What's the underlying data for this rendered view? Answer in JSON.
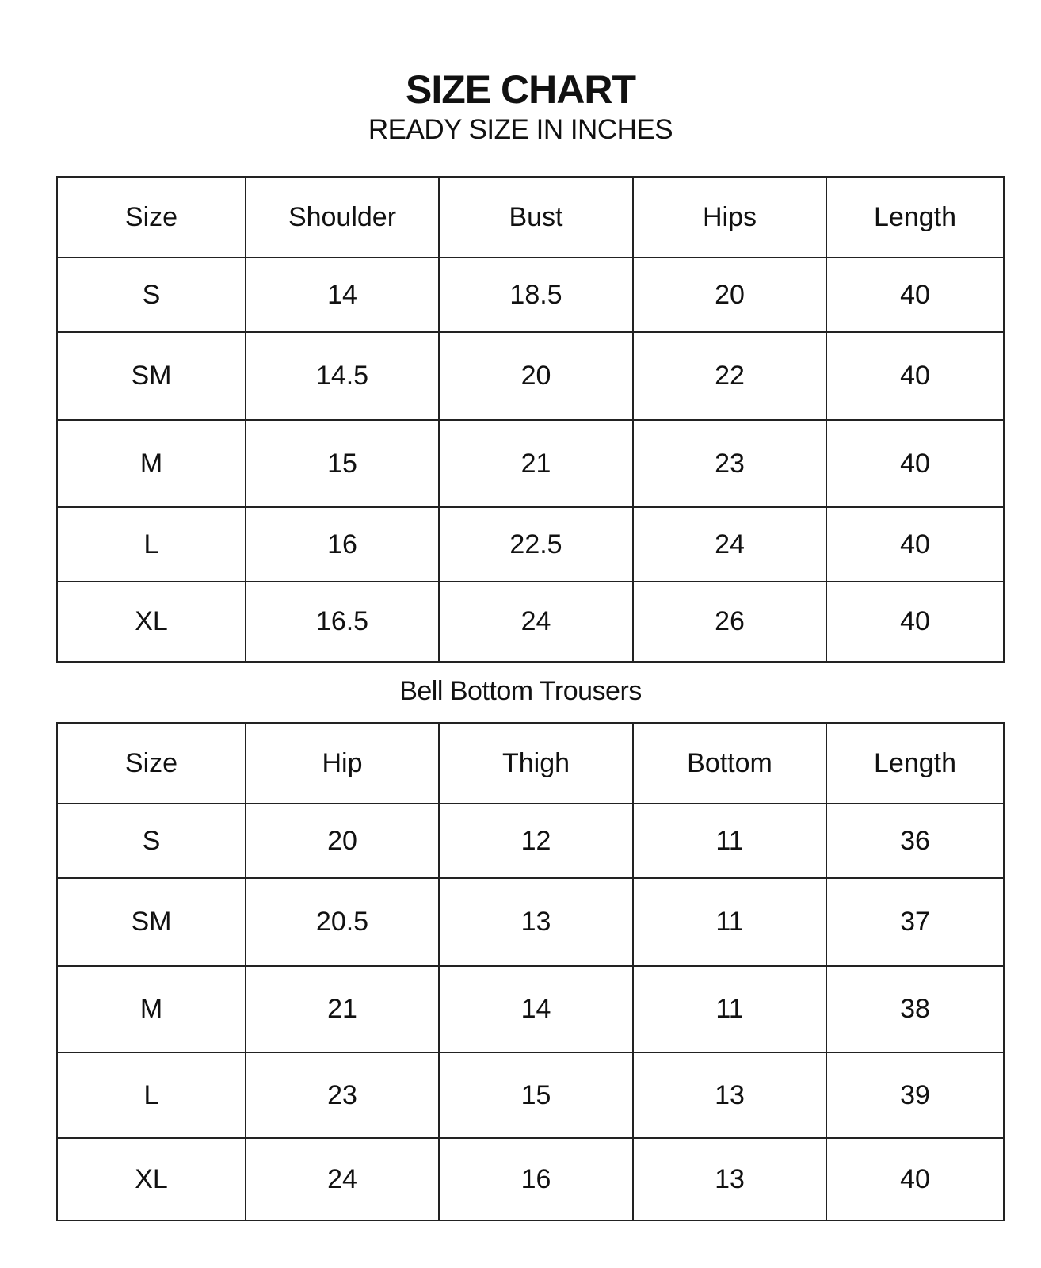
{
  "title": "SIZE CHART",
  "subtitle": "READY SIZE IN INCHES",
  "top_table": {
    "headers": [
      "Size",
      "Shoulder",
      "Bust",
      "Hips",
      "Length"
    ],
    "rows": [
      [
        "S",
        "14",
        "18.5",
        "20",
        "40"
      ],
      [
        "SM",
        "14.5",
        "20",
        "22",
        "40"
      ],
      [
        "M",
        "15",
        "21",
        "23",
        "40"
      ],
      [
        "L",
        "16",
        "22.5",
        "24",
        "40"
      ],
      [
        "XL",
        "16.5",
        "24",
        "26",
        "40"
      ]
    ]
  },
  "trousers_caption": "Bell Bottom Trousers",
  "trousers_table": {
    "headers": [
      "Size",
      "Hip",
      "Thigh",
      "Bottom",
      "Length"
    ],
    "rows": [
      [
        "S",
        "20",
        "12",
        "11",
        "36"
      ],
      [
        "SM",
        "20.5",
        "13",
        "11",
        "37"
      ],
      [
        "M",
        "21",
        "14",
        "11",
        "38"
      ],
      [
        "L",
        "23",
        "15",
        "13",
        "39"
      ],
      [
        "XL",
        "24",
        "16",
        "13",
        "40"
      ]
    ]
  }
}
